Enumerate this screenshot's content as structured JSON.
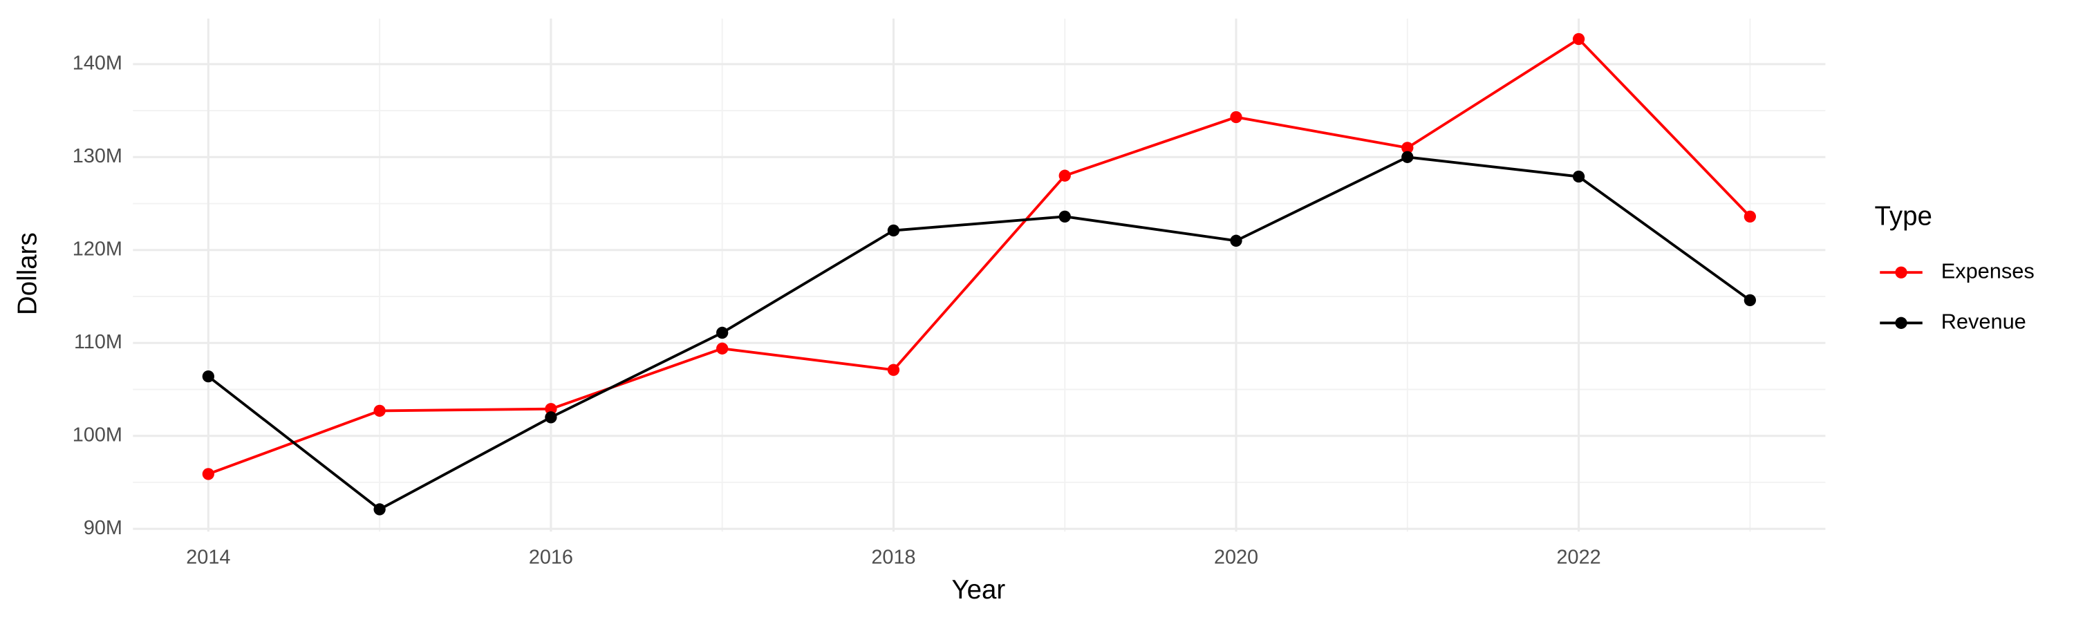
{
  "chart_data": {
    "type": "line",
    "x_label": "Year",
    "y_label": "Dollars",
    "legend_title": "Type",
    "legend_position": "right",
    "grid": true,
    "x": [
      2014,
      2015,
      2016,
      2017,
      2018,
      2019,
      2020,
      2021,
      2022,
      2023
    ],
    "series": [
      {
        "name": "Expenses",
        "color": "#ff0000",
        "values": [
          95900000,
          102700000,
          102900000,
          109400000,
          107100000,
          128000000,
          134300000,
          131000000,
          142700000,
          123600000
        ]
      },
      {
        "name": "Revenue",
        "color": "#000000",
        "values": [
          106400000,
          92100000,
          102000000,
          111100000,
          122100000,
          123600000,
          121000000,
          130000000,
          127900000,
          114600000
        ]
      }
    ],
    "xlim": [
      2013.56,
      2023.44
    ],
    "xticks": [
      2014,
      2016,
      2018,
      2020,
      2022
    ],
    "ylim": [
      89700000,
      144900000
    ],
    "yticks": [
      {
        "value": 90000000,
        "label": "90M"
      },
      {
        "value": 100000000,
        "label": "100M"
      },
      {
        "value": 110000000,
        "label": "110M"
      },
      {
        "value": 120000000,
        "label": "120M"
      },
      {
        "value": 130000000,
        "label": "130M"
      },
      {
        "value": 140000000,
        "label": "140M"
      }
    ]
  }
}
